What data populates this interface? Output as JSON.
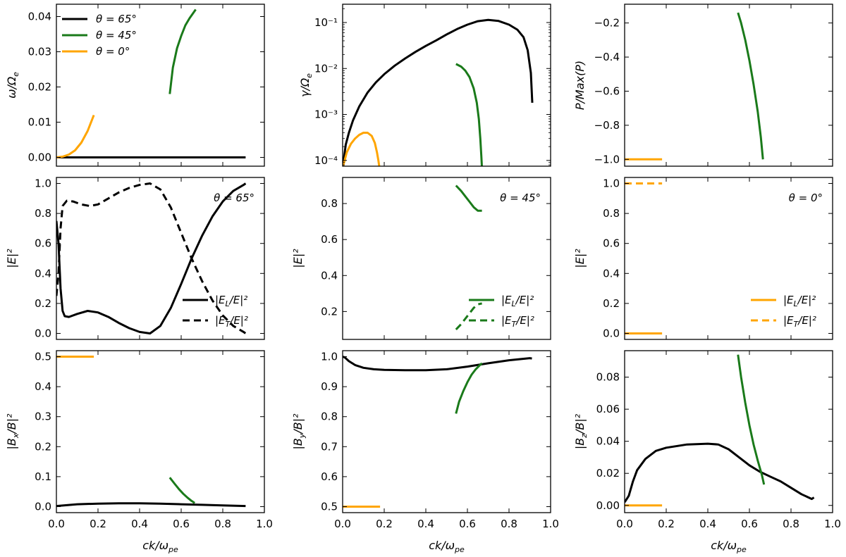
{
  "colors": {
    "black": "#000000",
    "green": "#1a7a1a",
    "orange": "#ffa500"
  },
  "xlabel": "ck/ω_pe",
  "xticks": [
    "0.0",
    "0.2",
    "0.4",
    "0.6",
    "0.8",
    "1.0"
  ],
  "chart_data": [
    {
      "id": "omega",
      "type": "line",
      "ylabel": "ω/Ω_e",
      "xlim": [
        0,
        1
      ],
      "ylim": [
        -0.0025,
        0.0435
      ],
      "yscale": "linear",
      "yticks": [
        {
          "v": 0,
          "t": "0.00"
        },
        {
          "v": 0.01,
          "t": "0.01"
        },
        {
          "v": 0.02,
          "t": "0.02"
        },
        {
          "v": 0.03,
          "t": "0.03"
        },
        {
          "v": 0.04,
          "t": "0.04"
        }
      ],
      "legend": [
        {
          "label": "θ = 65°",
          "color": "black",
          "dash": false
        },
        {
          "label": "θ = 45°",
          "color": "green",
          "dash": false
        },
        {
          "label": "θ = 0°",
          "color": "orange",
          "dash": false
        }
      ],
      "series": [
        {
          "name": "θ = 65°",
          "color": "black",
          "x": [
            0.0,
            0.2,
            0.4,
            0.6,
            0.8,
            0.91
          ],
          "y": [
            0.0,
            0.0,
            0.0,
            0.0,
            0.0,
            0.0
          ]
        },
        {
          "name": "θ = 45°",
          "color": "green",
          "x": [
            0.545,
            0.56,
            0.58,
            0.6,
            0.62,
            0.64,
            0.67
          ],
          "y": [
            0.018,
            0.0255,
            0.031,
            0.0345,
            0.0375,
            0.0395,
            0.042
          ]
        },
        {
          "name": "θ = 0°",
          "color": "orange",
          "x": [
            0.0,
            0.03,
            0.06,
            0.09,
            0.12,
            0.15,
            0.18
          ],
          "y": [
            0.0,
            0.0002,
            0.0008,
            0.002,
            0.0042,
            0.0075,
            0.012
          ]
        }
      ]
    },
    {
      "id": "gamma",
      "type": "line",
      "ylabel": "γ/Ω_e",
      "xlim": [
        0,
        1
      ],
      "ylim": [
        7.5e-05,
        0.25
      ],
      "yscale": "log",
      "yticks": [
        {
          "v": 0.0001,
          "t": "10⁻⁴"
        },
        {
          "v": 0.001,
          "t": "10⁻³"
        },
        {
          "v": 0.01,
          "t": "10⁻²"
        },
        {
          "v": 0.1,
          "t": "10⁻¹"
        }
      ],
      "series": [
        {
          "name": "θ = 65°",
          "color": "black",
          "x": [
            0.0,
            0.005,
            0.015,
            0.03,
            0.05,
            0.08,
            0.12,
            0.16,
            0.2,
            0.25,
            0.3,
            0.35,
            0.4,
            0.45,
            0.5,
            0.55,
            0.6,
            0.65,
            0.7,
            0.75,
            0.8,
            0.84,
            0.87,
            0.89,
            0.905,
            0.912
          ],
          "y": [
            7e-05,
            0.0001,
            0.00022,
            0.0004,
            0.00075,
            0.0015,
            0.003,
            0.005,
            0.0075,
            0.0115,
            0.0165,
            0.023,
            0.031,
            0.041,
            0.055,
            0.072,
            0.09,
            0.107,
            0.114,
            0.108,
            0.09,
            0.07,
            0.048,
            0.025,
            0.008,
            0.0018
          ]
        },
        {
          "name": "θ = 45°",
          "color": "green",
          "x": [
            0.545,
            0.57,
            0.59,
            0.61,
            0.63,
            0.645,
            0.655,
            0.662,
            0.667,
            0.67
          ],
          "y": [
            0.0125,
            0.011,
            0.009,
            0.0065,
            0.0037,
            0.0018,
            0.0008,
            0.0003,
            0.00012,
            7e-05
          ]
        },
        {
          "name": "θ = 0°",
          "color": "orange",
          "x": [
            0.0,
            0.01,
            0.02,
            0.04,
            0.06,
            0.08,
            0.1,
            0.12,
            0.14,
            0.155,
            0.165,
            0.172,
            0.177
          ],
          "y": [
            7e-05,
            0.0001,
            0.00015,
            0.00023,
            0.0003,
            0.00036,
            0.0004,
            0.0004,
            0.00034,
            0.00024,
            0.00015,
            0.0001,
            7e-05
          ]
        }
      ]
    },
    {
      "id": "power",
      "type": "line",
      "ylabel": "P/Max(P)",
      "xlim": [
        0,
        1
      ],
      "ylim": [
        -1.04,
        -0.09
      ],
      "yscale": "linear",
      "yticks": [
        {
          "v": -1.0,
          "t": "−1.0"
        },
        {
          "v": -0.8,
          "t": "−0.8"
        },
        {
          "v": -0.6,
          "t": "−0.6"
        },
        {
          "v": -0.4,
          "t": "−0.4"
        },
        {
          "v": -0.2,
          "t": "−0.2"
        }
      ],
      "series": [
        {
          "name": "θ = 45°",
          "color": "green",
          "x": [
            0.545,
            0.56,
            0.58,
            0.6,
            0.62,
            0.64,
            0.655,
            0.665
          ],
          "y": [
            -0.14,
            -0.2,
            -0.3,
            -0.42,
            -0.56,
            -0.72,
            -0.87,
            -1.0
          ]
        },
        {
          "name": "θ = 0°",
          "color": "orange",
          "x": [
            0.0,
            0.18
          ],
          "y": [
            -1.0,
            -1.0
          ]
        }
      ]
    },
    {
      "id": "E65",
      "type": "line",
      "ylabel": "|E|²",
      "xlim": [
        0,
        1
      ],
      "ylim": [
        -0.04,
        1.04
      ],
      "yscale": "linear",
      "annotation": "θ = 65°",
      "yticks": [
        {
          "v": 0,
          "t": "0.0"
        },
        {
          "v": 0.2,
          "t": "0.2"
        },
        {
          "v": 0.4,
          "t": "0.4"
        },
        {
          "v": 0.6,
          "t": "0.6"
        },
        {
          "v": 0.8,
          "t": "0.8"
        },
        {
          "v": 1.0,
          "t": "1.0"
        }
      ],
      "legend": [
        {
          "label": "|E_L/E|²",
          "color": "black",
          "dash": false
        },
        {
          "label": "|E_T/E|²",
          "color": "black",
          "dash": true
        }
      ],
      "series": [
        {
          "name": "|E_L/E|²",
          "color": "black",
          "dash": false,
          "x": [
            0.0,
            0.01,
            0.02,
            0.03,
            0.04,
            0.06,
            0.1,
            0.15,
            0.2,
            0.25,
            0.3,
            0.35,
            0.4,
            0.45,
            0.5,
            0.55,
            0.6,
            0.65,
            0.7,
            0.75,
            0.8,
            0.85,
            0.9,
            0.91
          ],
          "y": [
            0.75,
            0.6,
            0.3,
            0.15,
            0.115,
            0.11,
            0.13,
            0.15,
            0.14,
            0.11,
            0.07,
            0.035,
            0.01,
            0.0,
            0.05,
            0.17,
            0.33,
            0.5,
            0.65,
            0.78,
            0.88,
            0.95,
            0.99,
            1.0
          ]
        },
        {
          "name": "|E_T/E|²",
          "color": "black",
          "dash": true,
          "x": [
            0.0,
            0.01,
            0.02,
            0.03,
            0.05,
            0.08,
            0.12,
            0.16,
            0.2,
            0.25,
            0.3,
            0.35,
            0.4,
            0.45,
            0.5,
            0.55,
            0.6,
            0.65,
            0.7,
            0.75,
            0.8,
            0.85,
            0.9,
            0.91
          ],
          "y": [
            0.25,
            0.4,
            0.7,
            0.85,
            0.885,
            0.88,
            0.86,
            0.85,
            0.86,
            0.9,
            0.94,
            0.97,
            0.99,
            1.0,
            0.96,
            0.84,
            0.67,
            0.5,
            0.35,
            0.22,
            0.12,
            0.05,
            0.01,
            0.0
          ]
        }
      ]
    },
    {
      "id": "E45",
      "type": "line",
      "ylabel": "|E|²",
      "xlim": [
        0,
        1
      ],
      "ylim": [
        0.045,
        0.945
      ],
      "yscale": "linear",
      "annotation": "θ = 45°",
      "yticks": [
        {
          "v": 0.2,
          "t": "0.2"
        },
        {
          "v": 0.4,
          "t": "0.4"
        },
        {
          "v": 0.6,
          "t": "0.6"
        },
        {
          "v": 0.8,
          "t": "0.8"
        }
      ],
      "legend": [
        {
          "label": "|E_L/E|²",
          "color": "green",
          "dash": false
        },
        {
          "label": "|E_T/E|²",
          "color": "green",
          "dash": true
        }
      ],
      "series": [
        {
          "name": "|E_L/E|²",
          "color": "green",
          "dash": false,
          "x": [
            0.545,
            0.57,
            0.59,
            0.61,
            0.63,
            0.65,
            0.67
          ],
          "y": [
            0.9,
            0.87,
            0.84,
            0.81,
            0.78,
            0.76,
            0.76
          ]
        },
        {
          "name": "|E_T/E|²",
          "color": "green",
          "dash": true,
          "x": [
            0.545,
            0.57,
            0.59,
            0.61,
            0.63,
            0.65,
            0.67
          ],
          "y": [
            0.1,
            0.13,
            0.16,
            0.19,
            0.22,
            0.24,
            0.245
          ]
        }
      ]
    },
    {
      "id": "E0",
      "type": "line",
      "ylabel": "|E|²",
      "xlim": [
        0,
        1
      ],
      "ylim": [
        -0.04,
        1.04
      ],
      "yscale": "linear",
      "annotation": "θ = 0°",
      "yticks": [
        {
          "v": 0,
          "t": "0.0"
        },
        {
          "v": 0.2,
          "t": "0.2"
        },
        {
          "v": 0.4,
          "t": "0.4"
        },
        {
          "v": 0.6,
          "t": "0.6"
        },
        {
          "v": 0.8,
          "t": "0.8"
        },
        {
          "v": 1.0,
          "t": "1.0"
        }
      ],
      "legend": [
        {
          "label": "|E_L/E|²",
          "color": "orange",
          "dash": false
        },
        {
          "label": "|E_T/E|²",
          "color": "orange",
          "dash": true
        }
      ],
      "series": [
        {
          "name": "|E_L/E|²",
          "color": "orange",
          "dash": false,
          "x": [
            0.0,
            0.18
          ],
          "y": [
            0.0,
            0.0
          ]
        },
        {
          "name": "|E_T/E|²",
          "color": "orange",
          "dash": true,
          "x": [
            0.0,
            0.18
          ],
          "y": [
            1.0,
            1.0
          ]
        }
      ]
    },
    {
      "id": "Bx",
      "type": "line",
      "ylabel": "|B_x/B|²",
      "xlim": [
        0,
        1
      ],
      "ylim": [
        -0.02,
        0.52
      ],
      "yscale": "linear",
      "yticks": [
        {
          "v": 0,
          "t": "0.0"
        },
        {
          "v": 0.1,
          "t": "0.1"
        },
        {
          "v": 0.2,
          "t": "0.2"
        },
        {
          "v": 0.3,
          "t": "0.3"
        },
        {
          "v": 0.4,
          "t": "0.4"
        },
        {
          "v": 0.5,
          "t": "0.5"
        }
      ],
      "series": [
        {
          "name": "θ = 65°",
          "color": "black",
          "x": [
            0.0,
            0.05,
            0.1,
            0.2,
            0.3,
            0.4,
            0.5,
            0.6,
            0.7,
            0.8,
            0.91
          ],
          "y": [
            0.002,
            0.005,
            0.008,
            0.01,
            0.011,
            0.011,
            0.01,
            0.008,
            0.006,
            0.004,
            0.002
          ]
        },
        {
          "name": "θ = 45°",
          "color": "green",
          "x": [
            0.545,
            0.57,
            0.59,
            0.61,
            0.63,
            0.65,
            0.665
          ],
          "y": [
            0.097,
            0.075,
            0.058,
            0.043,
            0.03,
            0.019,
            0.012
          ]
        },
        {
          "name": "θ = 0°",
          "color": "orange",
          "x": [
            0.0,
            0.18
          ],
          "y": [
            0.5,
            0.5
          ]
        }
      ]
    },
    {
      "id": "By",
      "type": "line",
      "ylabel": "|B_y/B|²",
      "xlim": [
        0,
        1
      ],
      "ylim": [
        0.48,
        1.02
      ],
      "yscale": "linear",
      "yticks": [
        {
          "v": 0.5,
          "t": "0.5"
        },
        {
          "v": 0.6,
          "t": "0.6"
        },
        {
          "v": 0.7,
          "t": "0.7"
        },
        {
          "v": 0.8,
          "t": "0.8"
        },
        {
          "v": 0.9,
          "t": "0.9"
        },
        {
          "v": 1.0,
          "t": "1.0"
        }
      ],
      "series": [
        {
          "name": "θ = 65°",
          "color": "black",
          "x": [
            0.0,
            0.01,
            0.03,
            0.06,
            0.1,
            0.15,
            0.2,
            0.3,
            0.4,
            0.5,
            0.6,
            0.7,
            0.8,
            0.9,
            0.91
          ],
          "y": [
            1.0,
            0.998,
            0.985,
            0.972,
            0.963,
            0.958,
            0.956,
            0.955,
            0.955,
            0.958,
            0.967,
            0.978,
            0.988,
            0.995,
            0.994
          ]
        },
        {
          "name": "θ = 45°",
          "color": "green",
          "x": [
            0.545,
            0.56,
            0.58,
            0.6,
            0.62,
            0.64,
            0.66,
            0.67
          ],
          "y": [
            0.81,
            0.85,
            0.885,
            0.915,
            0.94,
            0.958,
            0.972,
            0.978
          ]
        },
        {
          "name": "θ = 0°",
          "color": "orange",
          "x": [
            0.0,
            0.18
          ],
          "y": [
            0.5,
            0.5
          ]
        }
      ]
    },
    {
      "id": "Bz",
      "type": "line",
      "ylabel": "|B_z/B|²",
      "xlim": [
        0,
        1
      ],
      "ylim": [
        -0.0045,
        0.0965
      ],
      "yscale": "linear",
      "yticks": [
        {
          "v": 0,
          "t": "0.00"
        },
        {
          "v": 0.02,
          "t": "0.02"
        },
        {
          "v": 0.04,
          "t": "0.04"
        },
        {
          "v": 0.06,
          "t": "0.06"
        },
        {
          "v": 0.08,
          "t": "0.08"
        }
      ],
      "series": [
        {
          "name": "θ = 65°",
          "color": "black",
          "x": [
            0.0,
            0.02,
            0.04,
            0.06,
            0.1,
            0.15,
            0.2,
            0.3,
            0.4,
            0.45,
            0.5,
            0.55,
            0.6,
            0.65,
            0.7,
            0.75,
            0.8,
            0.85,
            0.9,
            0.91
          ],
          "y": [
            0.002,
            0.006,
            0.015,
            0.022,
            0.029,
            0.034,
            0.036,
            0.038,
            0.0385,
            0.038,
            0.035,
            0.03,
            0.025,
            0.021,
            0.018,
            0.015,
            0.011,
            0.007,
            0.004,
            0.005
          ]
        },
        {
          "name": "θ = 45°",
          "color": "green",
          "x": [
            0.545,
            0.56,
            0.58,
            0.6,
            0.62,
            0.64,
            0.66,
            0.67
          ],
          "y": [
            0.094,
            0.08,
            0.064,
            0.05,
            0.038,
            0.028,
            0.019,
            0.013
          ]
        },
        {
          "name": "θ = 0°",
          "color": "orange",
          "x": [
            0.0,
            0.18
          ],
          "y": [
            0.0,
            0.0
          ]
        }
      ]
    }
  ]
}
